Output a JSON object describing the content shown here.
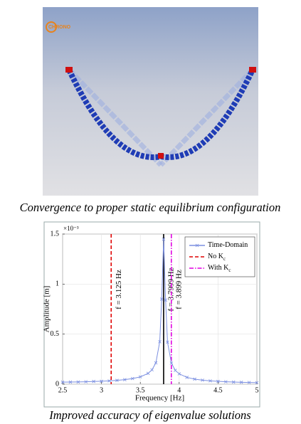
{
  "figure": {
    "logo": "CHRONO",
    "caption_top": "Convergence to proper static equilibrium configuration",
    "caption_bottom": "Improved accuracy of eigenvalue solutions"
  },
  "chart_data": {
    "type": "line",
    "xlabel": "Frequency [Hz]",
    "ylabel": "Amplitude [m]",
    "y_multiplier": "×10⁻³",
    "xlim": [
      2.5,
      5
    ],
    "xticks": [
      2.5,
      3,
      3.5,
      4,
      4.5,
      5
    ],
    "ylim": [
      0,
      1.5
    ],
    "yticks": [
      0,
      0.5,
      1,
      1.5
    ],
    "grid": true,
    "legend": "upper right",
    "x": [
      2.5,
      2.6,
      2.7,
      2.8,
      2.9,
      3.0,
      3.1,
      3.2,
      3.3,
      3.4,
      3.5,
      3.6,
      3.65,
      3.7,
      3.75,
      3.775,
      3.8,
      3.825,
      3.85,
      3.9,
      3.95,
      4.0,
      4.1,
      4.2,
      4.3,
      4.4,
      4.5,
      4.6,
      4.7,
      4.8,
      4.9,
      5.0
    ],
    "series": [
      {
        "name": "Time-Domain",
        "color": "#7b8fe0",
        "values": [
          0.02,
          0.021,
          0.022,
          0.024,
          0.027,
          0.029,
          0.033,
          0.038,
          0.045,
          0.056,
          0.073,
          0.108,
          0.143,
          0.213,
          0.424,
          0.85,
          1.45,
          0.84,
          0.42,
          0.21,
          0.138,
          0.103,
          0.068,
          0.05,
          0.04,
          0.033,
          0.028,
          0.024,
          0.021,
          0.019,
          0.017,
          0.015
        ]
      }
    ],
    "reference_lines": [
      {
        "x": 3.125,
        "label": "f = 3.125 Hz",
        "color": "#e00000",
        "style": "dashed",
        "name": "No K",
        "name_subscript": "c"
      },
      {
        "x": 3.7999,
        "label": "f = 3.7999 Hz",
        "color": "#000000",
        "style": "solid"
      },
      {
        "x": 3.899,
        "label": "f = 3.899 Hz",
        "color": "#e000e0",
        "style": "dashdot",
        "name": "With K",
        "name_subscript": "c"
      }
    ]
  }
}
